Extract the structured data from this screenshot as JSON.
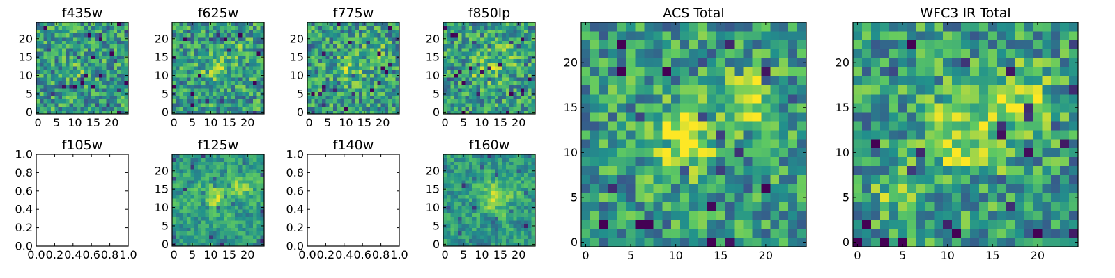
{
  "figure": {
    "background": "#ffffff",
    "colormap": [
      "#440154",
      "#3b528b",
      "#21918c",
      "#5ec962",
      "#fde725"
    ]
  },
  "chart_data": [
    {
      "type": "heatmap",
      "title": "f435w",
      "grid": [
        25,
        25
      ],
      "xlim": [
        -0.5,
        24.5
      ],
      "ylim": [
        -0.5,
        24.5
      ],
      "xticks": [
        "0",
        "5",
        "10",
        "15",
        "20"
      ],
      "yticks": [
        "0",
        "5",
        "10",
        "15",
        "20"
      ],
      "seed": 11,
      "blobs": [
        {
          "x": 11,
          "y": 11,
          "a": 0.1,
          "s": 3
        }
      ]
    },
    {
      "type": "heatmap",
      "title": "f625w",
      "grid": [
        25,
        25
      ],
      "xlim": [
        -0.5,
        24.5
      ],
      "ylim": [
        -0.5,
        24.5
      ],
      "xticks": [
        "0",
        "5",
        "10",
        "15",
        "20"
      ],
      "yticks": [
        "0",
        "5",
        "10",
        "15",
        "20"
      ],
      "seed": 22,
      "blobs": [
        {
          "x": 11,
          "y": 12,
          "a": 0.22,
          "s": 2.5
        },
        {
          "x": 18,
          "y": 16,
          "a": 0.15,
          "s": 2
        }
      ]
    },
    {
      "type": "heatmap",
      "title": "f775w",
      "grid": [
        25,
        25
      ],
      "xlim": [
        -0.5,
        24.5
      ],
      "ylim": [
        -0.5,
        24.5
      ],
      "xticks": [
        "0",
        "5",
        "10",
        "15",
        "20"
      ],
      "yticks": [
        "0",
        "5",
        "10",
        "15",
        "20"
      ],
      "seed": 33,
      "blobs": [
        {
          "x": 11,
          "y": 12,
          "a": 0.22,
          "s": 2.5
        },
        {
          "x": 18,
          "y": 16,
          "a": 0.18,
          "s": 2
        }
      ]
    },
    {
      "type": "heatmap",
      "title": "f850lp",
      "grid": [
        25,
        25
      ],
      "xlim": [
        -0.5,
        24.5
      ],
      "ylim": [
        -0.5,
        24.5
      ],
      "xticks": [
        "0",
        "5",
        "10",
        "15",
        "20"
      ],
      "yticks": [
        "0",
        "5",
        "10",
        "15",
        "20"
      ],
      "seed": 44,
      "blobs": [
        {
          "x": 11,
          "y": 12,
          "a": 0.22,
          "s": 3
        },
        {
          "x": 18,
          "y": 16,
          "a": 0.22,
          "s": 2.5
        }
      ]
    },
    {
      "type": "heatmap",
      "title": "ACS Total",
      "grid": [
        25,
        25
      ],
      "xlim": [
        -0.5,
        24.5
      ],
      "ylim": [
        -0.5,
        24.5
      ],
      "xticks": [
        "0",
        "5",
        "10",
        "15",
        "20"
      ],
      "yticks": [
        "0",
        "5",
        "10",
        "15",
        "20"
      ],
      "seed": 55,
      "blobs": [
        {
          "x": 11,
          "y": 11.5,
          "a": 0.38,
          "s": 2.6
        },
        {
          "x": 18.3,
          "y": 16,
          "a": 0.36,
          "s": 2.0
        }
      ]
    },
    {
      "type": "heatmap",
      "title": "WFC3 IR Total",
      "grid": [
        25,
        25
      ],
      "xlim": [
        -0.5,
        24.5
      ],
      "ylim": [
        -0.5,
        24.5
      ],
      "xticks": [
        "0",
        "5",
        "10",
        "15",
        "20"
      ],
      "yticks": [
        "0",
        "5",
        "10",
        "15",
        "20"
      ],
      "seed": 66,
      "blobs": [
        {
          "x": 12,
          "y": 12,
          "a": 0.34,
          "s": 3.2
        },
        {
          "x": 18,
          "y": 16,
          "a": 0.32,
          "s": 2.4
        },
        {
          "x": 4,
          "y": 5.5,
          "a": 0.22,
          "s": 1.6
        }
      ]
    },
    {
      "type": "heatmap",
      "title": "f105w",
      "empty": true,
      "xlim": [
        0,
        1
      ],
      "ylim": [
        0,
        1
      ],
      "xticks": [
        "0.0",
        "0.2",
        "0.4",
        "0.6",
        "0.8",
        "1.0"
      ],
      "yticks": [
        "0.0",
        "0.2",
        "0.4",
        "0.6",
        "0.8",
        "1.0"
      ]
    },
    {
      "type": "heatmap",
      "title": "f125w",
      "grid": [
        25,
        25
      ],
      "xlim": [
        -0.5,
        24.5
      ],
      "ylim": [
        -0.5,
        24.5
      ],
      "xticks": [
        "0",
        "5",
        "10",
        "15",
        "20"
      ],
      "yticks": [
        "0",
        "5",
        "10",
        "15",
        "20"
      ],
      "seed": 77,
      "smooth": true,
      "blobs": [
        {
          "x": 11,
          "y": 13,
          "a": 0.28,
          "s": 3
        },
        {
          "x": 18,
          "y": 16,
          "a": 0.22,
          "s": 2.5
        }
      ]
    },
    {
      "type": "heatmap",
      "title": "f140w",
      "empty": true,
      "xlim": [
        0,
        1
      ],
      "ylim": [
        0,
        1
      ],
      "xticks": [
        "0.0",
        "0.2",
        "0.4",
        "0.6",
        "0.8",
        "1.0"
      ],
      "yticks": [
        "0.0",
        "0.2",
        "0.4",
        "0.6",
        "0.8",
        "1.0"
      ]
    },
    {
      "type": "heatmap",
      "title": "f160w",
      "grid": [
        25,
        25
      ],
      "xlim": [
        -0.5,
        24.5
      ],
      "ylim": [
        -0.5,
        24.5
      ],
      "xticks": [
        "0",
        "5",
        "10",
        "15",
        "20"
      ],
      "yticks": [
        "0",
        "5",
        "10",
        "15",
        "20"
      ],
      "seed": 88,
      "smooth": true,
      "blobs": [
        {
          "x": 13,
          "y": 13,
          "a": 0.28,
          "s": 3
        },
        {
          "x": 19,
          "y": 16,
          "a": 0.18,
          "s": 2
        }
      ]
    }
  ]
}
